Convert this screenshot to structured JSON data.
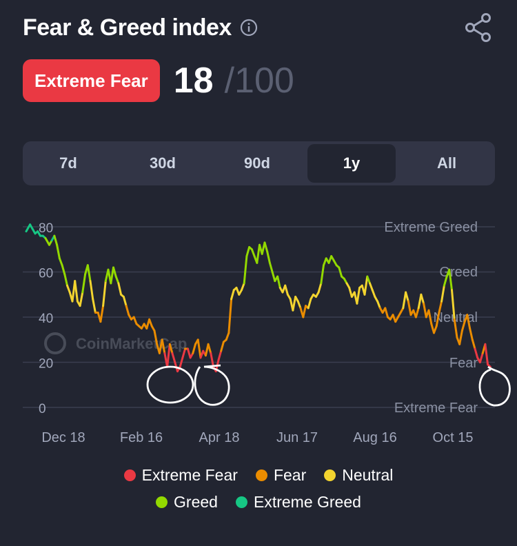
{
  "header": {
    "title": "Fear & Greed index",
    "info_icon": "info-icon",
    "share_icon": "share-icon"
  },
  "status": {
    "label": "Extreme Fear",
    "score": "18",
    "max": "/100",
    "color": "#ea3943"
  },
  "tabs": [
    {
      "label": "7d",
      "active": false
    },
    {
      "label": "30d",
      "active": false
    },
    {
      "label": "90d",
      "active": false
    },
    {
      "label": "1y",
      "active": true
    },
    {
      "label": "All",
      "active": false
    }
  ],
  "watermark": "CoinMarketCap",
  "legend": [
    {
      "label": "Extreme Fear",
      "color": "#ea3943"
    },
    {
      "label": "Fear",
      "color": "#ea8c00"
    },
    {
      "label": "Neutral",
      "color": "#f3d42f"
    },
    {
      "label": "Greed",
      "color": "#93d900"
    },
    {
      "label": "Extreme Greed",
      "color": "#16c784"
    }
  ],
  "chart_data": {
    "type": "line",
    "title": "",
    "xlabel": "",
    "ylabel": "",
    "ylim": [
      0,
      80
    ],
    "y_ticks": [
      "0",
      "20",
      "40",
      "60",
      "80"
    ],
    "x_ticks": [
      "Dec 18",
      "Feb 16",
      "Apr 18",
      "Jun 17",
      "Aug 16",
      "Oct 15"
    ],
    "zone_labels": [
      "Extreme Fear",
      "Fear",
      "Neutral",
      "Greed",
      "Extreme Greed"
    ],
    "zone_thresholds": [
      25,
      45,
      55,
      75
    ],
    "grid": true,
    "series": [
      {
        "x_days": [
          0,
          3,
          5,
          7,
          9,
          11,
          13,
          15,
          17,
          18,
          20,
          22,
          24,
          26,
          28,
          30,
          32,
          34,
          36,
          38,
          40,
          42,
          44,
          46,
          48,
          50,
          52,
          54,
          56,
          58,
          60,
          62,
          64,
          66,
          68,
          70,
          72,
          74,
          76,
          78,
          80,
          82,
          84,
          86,
          88,
          90,
          92,
          94,
          96,
          98,
          100,
          102,
          104,
          106,
          108,
          110,
          112,
          114,
          116,
          118,
          120,
          122,
          124,
          126,
          128,
          130,
          132,
          134,
          136,
          138,
          140,
          142,
          144,
          146,
          148,
          150,
          152,
          154,
          156,
          158,
          160,
          162,
          164,
          166,
          168,
          170,
          172,
          174,
          176,
          178,
          180,
          182,
          184,
          186,
          188,
          190,
          192,
          194,
          196,
          198,
          200,
          202,
          204,
          206,
          208,
          210,
          212,
          214,
          216,
          218,
          220,
          222,
          224,
          226,
          228,
          230,
          232,
          234,
          236,
          238,
          240,
          242,
          244,
          246,
          248,
          250,
          252,
          254,
          256,
          258,
          260,
          262,
          264,
          266,
          268,
          270,
          272,
          274,
          276,
          278,
          280,
          282,
          284,
          286,
          288,
          290,
          292,
          294,
          296,
          298,
          300,
          302,
          304,
          306,
          308,
          310,
          312,
          314,
          316,
          318,
          320,
          322,
          324,
          326,
          328,
          330,
          332,
          334,
          336,
          338,
          340,
          342,
          344,
          346,
          348,
          350,
          352,
          354,
          356,
          358,
          360,
          362
        ],
        "values": [
          78,
          81,
          79,
          77,
          78,
          76,
          76,
          75,
          73,
          72,
          74,
          76,
          72,
          66,
          63,
          59,
          54,
          51,
          47,
          56,
          47,
          45,
          51,
          59,
          63,
          56,
          48,
          42,
          42,
          38,
          45,
          56,
          61,
          55,
          62,
          58,
          55,
          50,
          49,
          45,
          41,
          39,
          40,
          37,
          36,
          35,
          37,
          35,
          39,
          36,
          34,
          28,
          24,
          30,
          24,
          18,
          28,
          24,
          20,
          16,
          18,
          22,
          26,
          26,
          22,
          24,
          28,
          30,
          22,
          25,
          23,
          28,
          24,
          18,
          16,
          21,
          25,
          29,
          30,
          33,
          48,
          52,
          53,
          50,
          52,
          55,
          67,
          71,
          70,
          67,
          64,
          72,
          68,
          73,
          69,
          64,
          60,
          56,
          58,
          53,
          51,
          54,
          50,
          48,
          43,
          49,
          47,
          44,
          40,
          45,
          44,
          48,
          50,
          49,
          51,
          55,
          63,
          66,
          64,
          67,
          65,
          63,
          62,
          58,
          57,
          55,
          53,
          49,
          51,
          46,
          53,
          54,
          50,
          58,
          55,
          52,
          49,
          47,
          44,
          42,
          44,
          40,
          39,
          41,
          38,
          40,
          42,
          44,
          51,
          47,
          41,
          43,
          40,
          44,
          50,
          46,
          40,
          43,
          37,
          33,
          36,
          42,
          47,
          54,
          58,
          61,
          52,
          39,
          31,
          28,
          34,
          38,
          41,
          35,
          30,
          26,
          22,
          20,
          24,
          28,
          19,
          18
        ]
      }
    ]
  }
}
